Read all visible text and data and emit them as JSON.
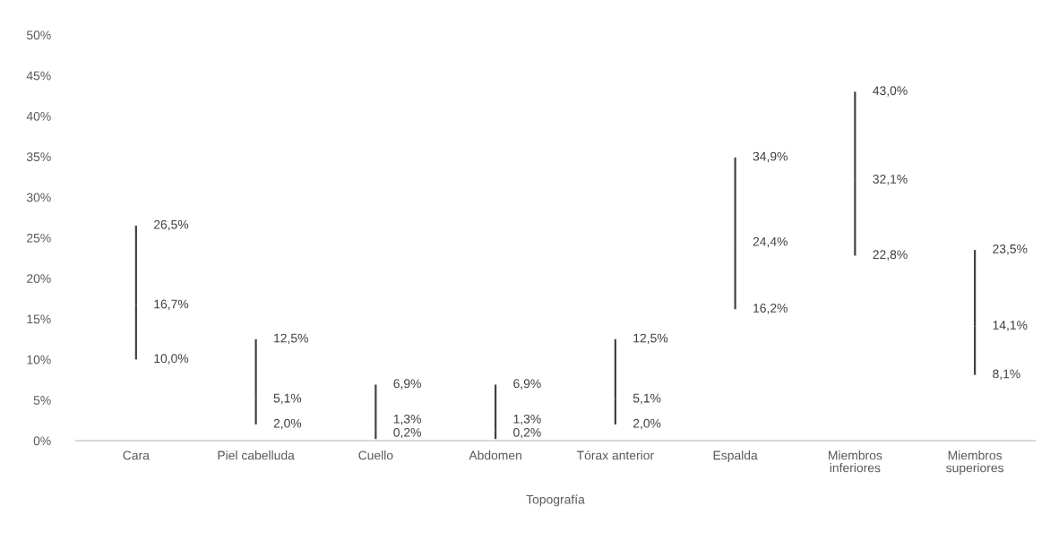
{
  "chart_data": {
    "type": "bar",
    "xlabel": "Topografía",
    "stacked": true,
    "categories": [
      "Cara",
      "Piel cabelluda",
      "Cuello",
      "Abdomen",
      "Tórax anterior",
      "Espalda",
      "Miembros inferiores",
      "Miembros superiores"
    ],
    "series": [
      {
        "color": "#404040",
        "base": [
          10.0,
          2.0,
          0.2,
          0.2,
          2.0,
          16.2,
          22.8,
          8.1
        ],
        "values": [
          6.7,
          3.1,
          1.1,
          1.1,
          3.1,
          8.2,
          9.3,
          6.0
        ]
      },
      {
        "color": "#404040",
        "values": [
          9.8,
          7.4,
          5.6,
          5.6,
          7.4,
          10.5,
          10.9,
          9.4
        ]
      }
    ],
    "ylim": [
      0,
      50
    ],
    "yticks": [
      {
        "value": 0,
        "label": "0%"
      },
      {
        "value": 5,
        "label": "5%"
      },
      {
        "value": 10,
        "label": "10%"
      },
      {
        "value": 15,
        "label": "15%"
      },
      {
        "value": 20,
        "label": "20%"
      },
      {
        "value": 25,
        "label": "25%"
      },
      {
        "value": 30,
        "label": "30%"
      },
      {
        "value": 35,
        "label": "35%"
      },
      {
        "value": 40,
        "label": "40%"
      },
      {
        "value": 45,
        "label": "45%"
      },
      {
        "value": 50,
        "label": "50%"
      }
    ],
    "annotations": [
      {
        "text": "26,5%",
        "x": "Cara",
        "y": 26.5
      },
      {
        "text": "16,7%",
        "x": "Cara",
        "y": 16.7
      },
      {
        "text": "10,0%",
        "x": "Cara",
        "y": 10.0
      },
      {
        "text": "12,5%",
        "x": "Piel cabelluda",
        "y": 12.5
      },
      {
        "text": "5,1%",
        "x": "Piel cabelluda",
        "y": 5.1
      },
      {
        "text": "2,0%",
        "x": "Piel cabelluda",
        "y": 2.0
      },
      {
        "text": "6,9%",
        "x": "Cuello",
        "y": 6.9
      },
      {
        "text": "1,3%",
        "x": "Cuello",
        "y": 1.3
      },
      {
        "text": "0,2%",
        "x": "Cuello",
        "y": 0.2
      },
      {
        "text": "6,9%",
        "x": "Abdomen",
        "y": 6.9
      },
      {
        "text": "1,3%",
        "x": "Abdomen",
        "y": 1.3
      },
      {
        "text": "0,2%",
        "x": "Abdomen",
        "y": 0.2
      },
      {
        "text": "12,5%",
        "x": "Tórax anterior",
        "y": 12.5
      },
      {
        "text": "5,1%",
        "x": "Tórax anterior",
        "y": 5.1
      },
      {
        "text": "2,0%",
        "x": "Tórax anterior",
        "y": 2.0
      },
      {
        "text": "34,9%",
        "x": "Espalda",
        "y": 34.9
      },
      {
        "text": "24,4%",
        "x": "Espalda",
        "y": 24.4
      },
      {
        "text": "16,2%",
        "x": "Espalda",
        "y": 16.2
      },
      {
        "text": "43,0%",
        "x": "Miembros inferiores",
        "y": 43.0
      },
      {
        "text": "32,1%",
        "x": "Miembros inferiores",
        "y": 32.1
      },
      {
        "text": "22,8%",
        "x": "Miembros inferiores",
        "y": 22.8
      },
      {
        "text": "23,5%",
        "x": "Miembros superiores",
        "y": 23.5
      },
      {
        "text": "14,1%",
        "x": "Miembros superiores",
        "y": 14.1
      },
      {
        "text": "8,1%",
        "x": "Miembros superiores",
        "y": 8.1
      }
    ]
  }
}
